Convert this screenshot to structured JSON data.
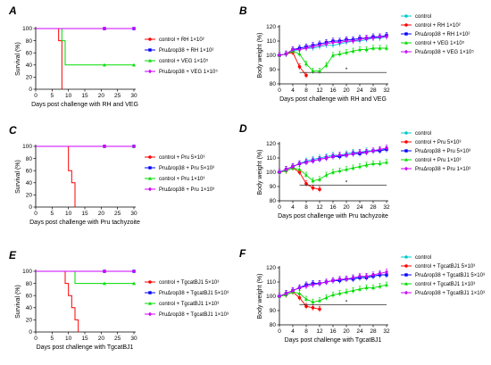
{
  "chart_data": [
    {
      "panel": "A",
      "type": "line",
      "xlabel": "Days post challenge with RH and VEG",
      "ylabel": "Survival (%)",
      "xlim": [
        0,
        30
      ],
      "ylim": [
        0,
        100
      ],
      "xticks": [
        0,
        5,
        10,
        15,
        20,
        25,
        30
      ],
      "yticks": [
        0,
        20,
        40,
        60,
        80,
        100
      ],
      "series": [
        {
          "name": "control + RH 1×10²",
          "color": "#ff0000",
          "points": [
            [
              0,
              100
            ],
            [
              7,
              100
            ],
            [
              7,
              80
            ],
            [
              8,
              80
            ],
            [
              8,
              0
            ]
          ]
        },
        {
          "name": "PruΔrop38 + RH 1×10²",
          "color": "#0000ff",
          "points": [
            [
              0,
              100
            ],
            [
              30,
              100
            ]
          ]
        },
        {
          "name": "control + VEG 1×10⁵",
          "color": "#00dd00",
          "points": [
            [
              0,
              100
            ],
            [
              8,
              100
            ],
            [
              8,
              80
            ],
            [
              9,
              80
            ],
            [
              9,
              40
            ],
            [
              30,
              40
            ]
          ]
        },
        {
          "name": "PruΔrop38 + VEG 1×10⁵",
          "color": "#cc00ff",
          "points": [
            [
              0,
              100
            ],
            [
              30,
              100
            ]
          ]
        }
      ]
    },
    {
      "panel": "B",
      "type": "line",
      "xlabel": "Days post challenge with RH and VEG",
      "ylabel": "Body weight (%)",
      "xlim": [
        0,
        32
      ],
      "ylim": [
        80,
        120
      ],
      "xticks": [
        0,
        4,
        8,
        12,
        16,
        20,
        24,
        28,
        32
      ],
      "yticks": [
        80,
        90,
        100,
        110,
        120
      ],
      "x": [
        0,
        2,
        4,
        6,
        8,
        10,
        12,
        14,
        16,
        18,
        20,
        22,
        24,
        26,
        28,
        30,
        32
      ],
      "series": [
        {
          "name": "control",
          "color": "#00cccc",
          "values": [
            100,
            101,
            103,
            104,
            105,
            105,
            106,
            107,
            107,
            108,
            109,
            110,
            110,
            111,
            112,
            112,
            113
          ]
        },
        {
          "name": "control + RH 1×10²",
          "color": "#ff0000",
          "values": [
            100,
            101,
            102,
            92,
            86,
            null,
            null,
            null,
            null,
            null,
            null,
            null,
            null,
            null,
            null,
            null,
            null
          ]
        },
        {
          "name": "PruΔrop38 + RH 1×10²",
          "color": "#0000ff",
          "values": [
            100,
            101,
            104,
            105,
            106,
            107,
            108,
            109,
            110,
            110,
            111,
            111,
            112,
            112,
            113,
            113,
            114
          ]
        },
        {
          "name": "control + VEG 1×10⁵",
          "color": "#00dd00",
          "values": [
            100,
            101,
            103,
            101,
            94,
            89,
            89,
            93,
            100,
            101,
            102,
            103,
            104,
            104,
            105,
            105,
            105
          ]
        },
        {
          "name": "PruΔrop38 + VEG 1×10⁵",
          "color": "#cc00ff",
          "values": [
            100,
            101,
            104,
            104,
            105,
            106,
            107,
            108,
            109,
            109,
            110,
            110,
            111,
            112,
            112,
            113,
            113
          ]
        }
      ],
      "annotation": {
        "text": "*",
        "x": 20,
        "y": 88
      }
    },
    {
      "panel": "C",
      "type": "line",
      "xlabel": "Days post challenge with Pru tachyzoite",
      "ylabel": "Survival (%)",
      "xlim": [
        0,
        30
      ],
      "ylim": [
        0,
        100
      ],
      "xticks": [
        0,
        5,
        10,
        15,
        20,
        25,
        30
      ],
      "yticks": [
        0,
        20,
        40,
        60,
        80,
        100
      ],
      "series": [
        {
          "name": "control + Pru 5×10³",
          "color": "#ff0000",
          "points": [
            [
              0,
              100
            ],
            [
              10,
              100
            ],
            [
              10,
              60
            ],
            [
              11,
              60
            ],
            [
              11,
              40
            ],
            [
              12,
              40
            ],
            [
              12,
              0
            ]
          ]
        },
        {
          "name": "PruΔrop38 + Pru 5×10³",
          "color": "#0000ff",
          "points": [
            [
              0,
              100
            ],
            [
              30,
              100
            ]
          ]
        },
        {
          "name": "control + Pru 1×10³",
          "color": "#00dd00",
          "points": [
            [
              0,
              100
            ],
            [
              30,
              100
            ]
          ]
        },
        {
          "name": "PruΔrop38 + Pru 1×10³",
          "color": "#cc00ff",
          "points": [
            [
              0,
              100
            ],
            [
              30,
              100
            ]
          ]
        }
      ]
    },
    {
      "panel": "D",
      "type": "line",
      "xlabel": "Days post challenge with Pru tachyzoite",
      "ylabel": "Body weight (%)",
      "xlim": [
        0,
        32
      ],
      "ylim": [
        80,
        120
      ],
      "xticks": [
        0,
        4,
        8,
        12,
        16,
        20,
        24,
        28,
        32
      ],
      "yticks": [
        80,
        90,
        100,
        110,
        120
      ],
      "x": [
        0,
        2,
        4,
        6,
        8,
        10,
        12,
        14,
        16,
        18,
        20,
        22,
        24,
        26,
        28,
        30,
        32
      ],
      "series": [
        {
          "name": "control",
          "color": "#00cccc",
          "values": [
            100,
            102,
            104,
            106,
            108,
            109,
            110,
            111,
            112,
            112,
            113,
            114,
            114,
            115,
            115,
            116,
            116
          ]
        },
        {
          "name": "control + Pru 5×10³",
          "color": "#ff0000",
          "values": [
            100,
            101,
            103,
            100,
            92,
            89,
            88,
            null,
            null,
            null,
            null,
            null,
            null,
            null,
            null,
            null,
            null
          ]
        },
        {
          "name": "PruΔrop38 + Pru 5×10³",
          "color": "#0000ff",
          "values": [
            100,
            102,
            104,
            106,
            107,
            108,
            109,
            110,
            111,
            111,
            112,
            113,
            113,
            114,
            115,
            115,
            116
          ]
        },
        {
          "name": "control + Pru 1×10³",
          "color": "#00dd00",
          "values": [
            100,
            101,
            103,
            102,
            98,
            94,
            95,
            98,
            100,
            101,
            102,
            103,
            104,
            105,
            106,
            106,
            107
          ]
        },
        {
          "name": "PruΔrop38 + Pru 1×10³",
          "color": "#cc00ff",
          "values": [
            100,
            102,
            104,
            106,
            107,
            108,
            109,
            110,
            111,
            112,
            112,
            113,
            114,
            114,
            115,
            116,
            117
          ]
        }
      ],
      "annotation": {
        "text": "*",
        "x": 20,
        "y": 91
      }
    },
    {
      "panel": "E",
      "type": "line",
      "xlabel": "Days post challenge with TgcatBJ1",
      "ylabel": "Survival (%)",
      "xlim": [
        0,
        30
      ],
      "ylim": [
        0,
        100
      ],
      "xticks": [
        0,
        5,
        10,
        15,
        20,
        25,
        30
      ],
      "yticks": [
        0,
        20,
        40,
        60,
        80,
        100
      ],
      "series": [
        {
          "name": "control + TgcatBJ1 5×10³",
          "color": "#ff0000",
          "points": [
            [
              0,
              100
            ],
            [
              9,
              100
            ],
            [
              9,
              80
            ],
            [
              10,
              80
            ],
            [
              10,
              60
            ],
            [
              11,
              60
            ],
            [
              11,
              40
            ],
            [
              12,
              40
            ],
            [
              12,
              20
            ],
            [
              13,
              20
            ],
            [
              13,
              0
            ]
          ]
        },
        {
          "name": "PruΔrop38 + TgcatBJ1 5×10³",
          "color": "#0000ff",
          "points": [
            [
              0,
              100
            ],
            [
              30,
              100
            ]
          ]
        },
        {
          "name": "control + TgcatBJ1 1×10³",
          "color": "#00dd00",
          "points": [
            [
              0,
              100
            ],
            [
              12,
              100
            ],
            [
              12,
              80
            ],
            [
              30,
              80
            ]
          ]
        },
        {
          "name": "PruΔrop38 + TgcatBJ1 1×10³",
          "color": "#cc00ff",
          "points": [
            [
              0,
              100
            ],
            [
              30,
              100
            ]
          ]
        }
      ]
    },
    {
      "panel": "F",
      "type": "line",
      "xlabel": "Days post challenge with TgcatBJ1",
      "ylabel": "Body weight (%)",
      "xlim": [
        0,
        32
      ],
      "ylim": [
        80,
        120
      ],
      "xticks": [
        0,
        4,
        8,
        12,
        16,
        20,
        24,
        28,
        32
      ],
      "yticks": [
        80,
        90,
        100,
        110,
        120
      ],
      "x": [
        0,
        2,
        4,
        6,
        8,
        10,
        12,
        14,
        16,
        18,
        20,
        22,
        24,
        26,
        28,
        30,
        32
      ],
      "series": [
        {
          "name": "control",
          "color": "#00cccc",
          "values": [
            100,
            102,
            104,
            106,
            107,
            108,
            109,
            110,
            111,
            111,
            112,
            113,
            113,
            114,
            114,
            115,
            115
          ]
        },
        {
          "name": "control + TgcatBJ1 5×10³",
          "color": "#ff0000",
          "values": [
            100,
            101,
            103,
            99,
            93,
            92,
            91,
            null,
            null,
            null,
            null,
            null,
            null,
            null,
            null,
            null,
            null
          ]
        },
        {
          "name": "PruΔrop38 + TgcatBJ1 5×10³",
          "color": "#0000ff",
          "values": [
            100,
            102,
            104,
            106,
            108,
            109,
            109,
            110,
            111,
            111,
            112,
            112,
            113,
            113,
            114,
            115,
            115
          ]
        },
        {
          "name": "control + TgcatBJ1 1×10³",
          "color": "#00dd00",
          "values": [
            100,
            101,
            103,
            102,
            98,
            96,
            97,
            99,
            101,
            102,
            103,
            104,
            105,
            106,
            106,
            107,
            108
          ]
        },
        {
          "name": "PruΔrop38 + TgcatBJ1 1×10³",
          "color": "#cc00ff",
          "values": [
            100,
            102,
            104,
            106,
            107,
            108,
            109,
            110,
            111,
            112,
            112,
            113,
            114,
            114,
            115,
            116,
            117
          ]
        }
      ],
      "annotation": {
        "text": "*",
        "x": 20,
        "y": 94
      }
    }
  ]
}
